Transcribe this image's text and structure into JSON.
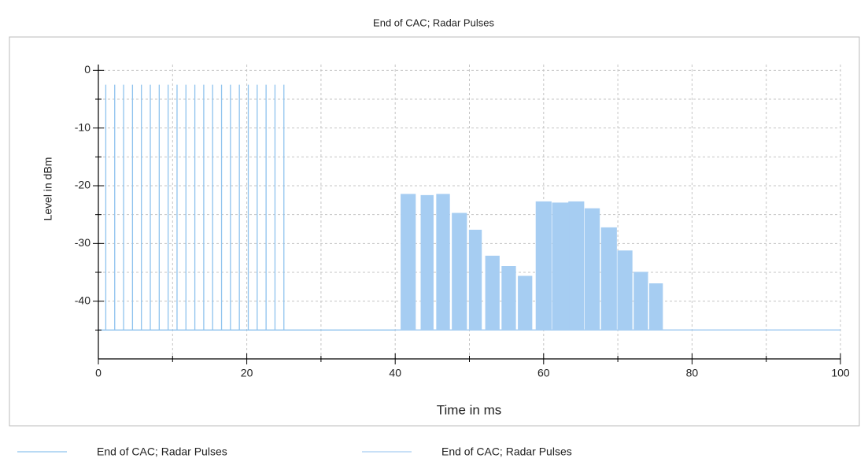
{
  "chart_data": {
    "type": "line",
    "title": "End of CAC; Radar Pulses",
    "x_label": "Time in ms",
    "y_label": "Level in dBm",
    "xlim": [
      0,
      100
    ],
    "xticks": [
      0,
      20,
      40,
      60,
      80,
      100
    ],
    "x_minor_ticks": [
      10,
      30,
      50,
      70,
      90
    ],
    "ylim": [
      -50,
      1
    ],
    "yticks": [
      0,
      -10,
      -20,
      -30,
      -40
    ],
    "y_minor_ticks": [
      -5,
      -15,
      -25,
      -35,
      -45
    ],
    "grid": true,
    "legend": "bottom",
    "series": [
      {
        "name": "End of CAC; Radar Pulses",
        "color": "#8fc3ee",
        "fill": false,
        "x": [
          0,
          1.0,
          1.0,
          1.0,
          2.2,
          2.2,
          2.2,
          3.4,
          3.4,
          3.4,
          4.6,
          4.6,
          4.6,
          5.8,
          5.8,
          5.8,
          7.0,
          7.0,
          7.0,
          8.2,
          8.2,
          8.2,
          9.4,
          9.4,
          9.4,
          10.6,
          10.6,
          10.6,
          11.8,
          11.8,
          11.8,
          13.0,
          13.0,
          13.0,
          14.2,
          14.2,
          14.2,
          15.4,
          15.4,
          15.4,
          16.6,
          16.6,
          16.6,
          17.8,
          17.8,
          17.8,
          19.0,
          19.0,
          19.0,
          20.2,
          20.2,
          20.2,
          21.4,
          21.4,
          21.4,
          22.6,
          22.6,
          22.6,
          23.8,
          23.8,
          23.8,
          25.0,
          25.0,
          25.0,
          100
        ],
        "values": [
          -45,
          -45,
          -2.5,
          -45,
          -45,
          -2.5,
          -45,
          -45,
          -2.5,
          -45,
          -45,
          -2.5,
          -45,
          -45,
          -2.5,
          -45,
          -45,
          -2.5,
          -45,
          -45,
          -2.5,
          -45,
          -45,
          -2.5,
          -45,
          -45,
          -2.5,
          -45,
          -45,
          -2.5,
          -45,
          -45,
          -2.5,
          -45,
          -45,
          -2.5,
          -45,
          -45,
          -2.5,
          -45,
          -45,
          -2.5,
          -45,
          -45,
          -2.5,
          -45,
          -45,
          -2.5,
          -45,
          -45,
          -2.5,
          -45,
          -45,
          -2.5,
          -45,
          -45,
          -2.5,
          -45,
          -45,
          -2.5,
          -45,
          -45,
          -2.5,
          -45,
          -45
        ]
      },
      {
        "name": "End of CAC; Radar Pulses",
        "color": "#a6cdf2",
        "fill": true,
        "x": [
          40,
          40.8,
          40.8,
          42.7,
          42.7,
          43.5,
          43.5,
          45.1,
          45.1,
          45.6,
          45.6,
          47.3,
          47.3,
          47.7,
          47.7,
          49.6,
          49.6,
          50.0,
          50.0,
          51.6,
          51.6,
          52.2,
          52.2,
          54.0,
          54.0,
          54.4,
          54.4,
          56.2,
          56.2,
          56.6,
          56.6,
          58.4,
          58.4,
          59.0,
          59.0,
          61.0,
          61.0,
          61.2,
          61.2,
          63.3,
          63.3,
          63.4,
          63.4,
          65.4,
          65.4,
          65.6,
          65.6,
          67.5,
          67.5,
          67.8,
          67.8,
          69.8,
          69.8,
          70.0,
          70.0,
          71.9,
          71.9,
          72.2,
          72.2,
          74.0,
          74.0,
          74.3,
          74.3,
          76.0,
          76.0,
          100
        ],
        "values": [
          -45,
          -45,
          -21.5,
          -21.5,
          -45,
          -45,
          -21.7,
          -21.7,
          -45,
          -45,
          -21.5,
          -21.5,
          -45,
          -45,
          -24.8,
          -24.8,
          -45,
          -45,
          -27.7,
          -27.7,
          -45,
          -45,
          -32.2,
          -32.2,
          -45,
          -45,
          -34.0,
          -34.0,
          -45,
          -45,
          -35.7,
          -35.7,
          -45,
          -45,
          -22.8,
          -22.8,
          -45,
          -45,
          -23.0,
          -23.0,
          -45,
          -45,
          -22.8,
          -22.8,
          -45,
          -45,
          -24.0,
          -24.0,
          -45,
          -45,
          -27.3,
          -27.3,
          -45,
          -45,
          -31.3,
          -31.3,
          -45,
          -45,
          -35.0,
          -35.0,
          -45,
          -45,
          -37.0,
          -37.0,
          -45,
          -45
        ]
      }
    ]
  }
}
